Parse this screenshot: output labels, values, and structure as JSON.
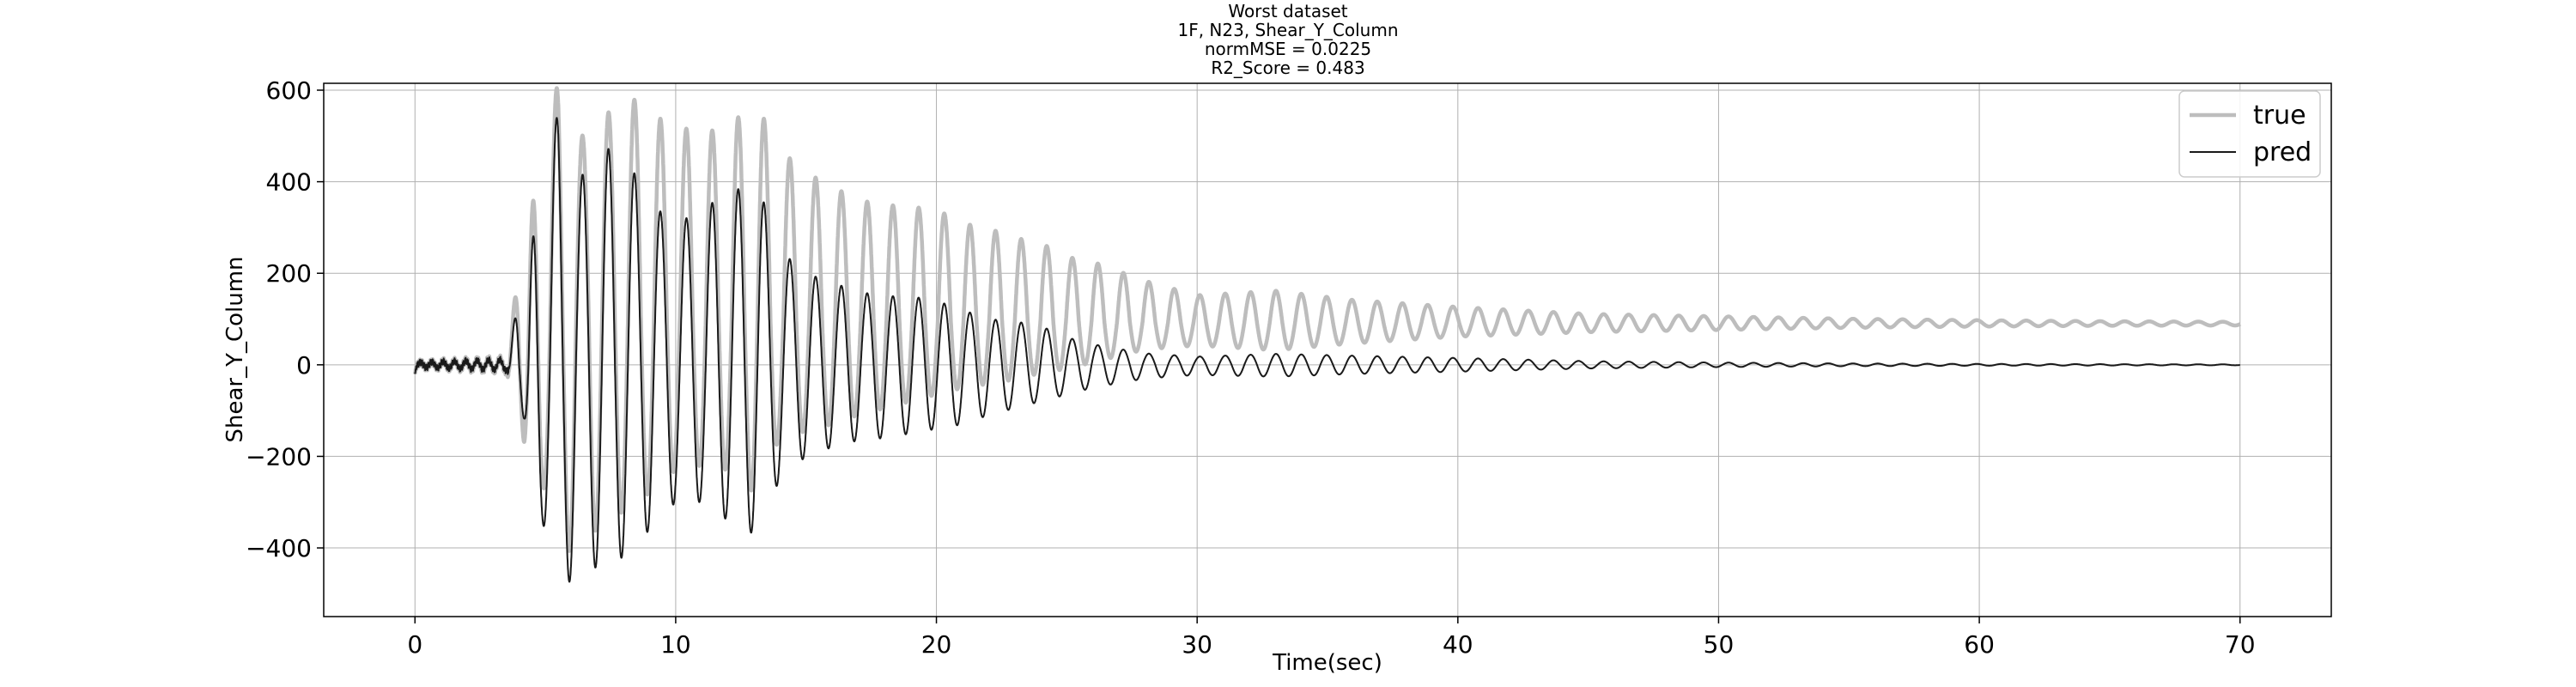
{
  "chart_data": {
    "type": "line",
    "title_lines": [
      "Worst dataset",
      "1F, N23, Shear_Y_Column",
      "normMSE = 0.0225",
      "R2_Score = 0.483"
    ],
    "xlabel": "Time(sec)",
    "ylabel": "Shear_Y_Column",
    "xlim": [
      -3.5,
      73.5
    ],
    "ylim": [
      -550,
      615
    ],
    "xticks": [
      0,
      10,
      20,
      30,
      40,
      50,
      60,
      70
    ],
    "yticks": [
      600,
      400,
      200,
      0,
      -200,
      -400
    ],
    "grid": true,
    "legend_position": "top-right",
    "series": [
      {
        "name": "true",
        "color": "#bdbdbd",
        "start": 0,
        "end": 70,
        "offset": [
          [
            0,
            0
          ],
          [
            3.6,
            0
          ],
          [
            4.4,
            50
          ],
          [
            8,
            100
          ],
          [
            20,
            100
          ],
          [
            30,
            92
          ],
          [
            70,
            90
          ]
        ],
        "peaks": [
          [
            0,
            5
          ],
          [
            3.5,
            15
          ],
          [
            4.2,
            260
          ],
          [
            4.7,
            330
          ],
          [
            5.5,
            560
          ],
          [
            6.2,
            420
          ],
          [
            7,
            430
          ],
          [
            8,
            500
          ],
          [
            9,
            450
          ],
          [
            10,
            420
          ],
          [
            11,
            410
          ],
          [
            12,
            415
          ],
          [
            13,
            480
          ],
          [
            14,
            370
          ],
          [
            15,
            320
          ],
          [
            16,
            290
          ],
          [
            17,
            260
          ],
          [
            18,
            250
          ],
          [
            19,
            245
          ],
          [
            20,
            240
          ],
          [
            21,
            210
          ],
          [
            22,
            200
          ],
          [
            23,
            180
          ],
          [
            24,
            170
          ],
          [
            25,
            140
          ],
          [
            26,
            130
          ],
          [
            27,
            110
          ],
          [
            28,
            90
          ],
          [
            30,
            60
          ],
          [
            33,
            70
          ],
          [
            36,
            50
          ],
          [
            40,
            35
          ],
          [
            45,
            20
          ],
          [
            50,
            15
          ],
          [
            55,
            10
          ],
          [
            60,
            7
          ],
          [
            65,
            5
          ],
          [
            70,
            4
          ]
        ],
        "troughs": [
          [
            0,
            5
          ],
          [
            3.5,
            15
          ],
          [
            4.2,
            210
          ],
          [
            4.7,
            260
          ],
          [
            5.5,
            490
          ],
          [
            6.2,
            470
          ],
          [
            7,
            445
          ],
          [
            8,
            420
          ],
          [
            9,
            380
          ],
          [
            10,
            330
          ],
          [
            11,
            320
          ],
          [
            12,
            330
          ],
          [
            13,
            380
          ],
          [
            14,
            260
          ],
          [
            15,
            245
          ],
          [
            16,
            230
          ],
          [
            17,
            210
          ],
          [
            18,
            195
          ],
          [
            19,
            180
          ],
          [
            20,
            165
          ],
          [
            21,
            150
          ],
          [
            22,
            140
          ],
          [
            23,
            130
          ],
          [
            24,
            115
          ],
          [
            25,
            105
          ],
          [
            26,
            90
          ],
          [
            27,
            75
          ],
          [
            28,
            60
          ],
          [
            30,
            50
          ],
          [
            33,
            60
          ],
          [
            36,
            45
          ],
          [
            40,
            30
          ],
          [
            45,
            20
          ],
          [
            50,
            15
          ],
          [
            55,
            10
          ],
          [
            60,
            7
          ],
          [
            65,
            5
          ],
          [
            70,
            4
          ]
        ],
        "stroke_width": 4.5
      },
      {
        "name": "pred",
        "color": "#1a1a1a",
        "start": 0,
        "end": 70,
        "offset": [
          [
            0,
            0
          ],
          [
            70,
            0
          ]
        ],
        "peaks": [
          [
            0,
            5
          ],
          [
            3.5,
            12
          ],
          [
            4.2,
            200
          ],
          [
            4.7,
            320
          ],
          [
            5.5,
            560
          ],
          [
            6.2,
            390
          ],
          [
            7,
            480
          ],
          [
            8,
            460
          ],
          [
            9,
            360
          ],
          [
            10,
            300
          ],
          [
            11,
            350
          ],
          [
            12,
            360
          ],
          [
            13,
            420
          ],
          [
            14,
            250
          ],
          [
            15,
            200
          ],
          [
            16,
            180
          ],
          [
            17,
            160
          ],
          [
            18,
            150
          ],
          [
            19,
            150
          ],
          [
            20,
            140
          ],
          [
            21,
            120
          ],
          [
            22,
            100
          ],
          [
            23,
            95
          ],
          [
            24,
            85
          ],
          [
            25,
            60
          ],
          [
            26,
            45
          ],
          [
            27,
            35
          ],
          [
            28,
            25
          ],
          [
            30,
            18
          ],
          [
            33,
            24
          ],
          [
            36,
            20
          ],
          [
            40,
            15
          ],
          [
            45,
            8
          ],
          [
            50,
            5
          ],
          [
            55,
            3
          ],
          [
            60,
            2
          ],
          [
            65,
            1.5
          ],
          [
            70,
            1
          ]
        ],
        "troughs": [
          [
            0,
            5
          ],
          [
            3.5,
            12
          ],
          [
            4.2,
            120
          ],
          [
            4.7,
            300
          ],
          [
            5.5,
            480
          ],
          [
            6.2,
            470
          ],
          [
            7,
            440
          ],
          [
            8,
            420
          ],
          [
            9,
            360
          ],
          [
            10,
            300
          ],
          [
            11,
            300
          ],
          [
            12,
            340
          ],
          [
            13,
            370
          ],
          [
            14,
            250
          ],
          [
            15,
            200
          ],
          [
            16,
            180
          ],
          [
            17,
            165
          ],
          [
            18,
            160
          ],
          [
            19,
            150
          ],
          [
            20,
            140
          ],
          [
            21,
            130
          ],
          [
            22,
            110
          ],
          [
            23,
            95
          ],
          [
            24,
            80
          ],
          [
            25,
            65
          ],
          [
            26,
            50
          ],
          [
            27,
            40
          ],
          [
            28,
            30
          ],
          [
            30,
            22
          ],
          [
            33,
            26
          ],
          [
            36,
            20
          ],
          [
            40,
            15
          ],
          [
            45,
            8
          ],
          [
            50,
            5
          ],
          [
            55,
            3
          ],
          [
            60,
            2
          ],
          [
            65,
            1.5
          ],
          [
            70,
            1
          ]
        ],
        "stroke_width": 2
      }
    ]
  }
}
